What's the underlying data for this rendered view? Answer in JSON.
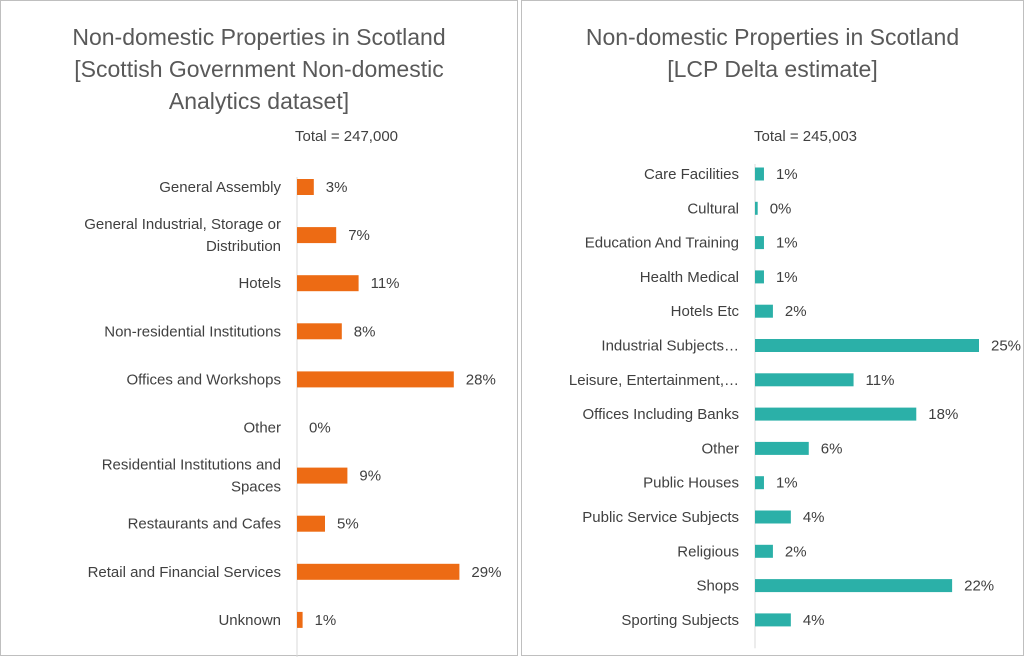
{
  "chart_data": [
    {
      "type": "bar",
      "orientation": "horizontal",
      "title": "Non-domestic Properties in Scotland [Scottish Government Non-domestic Analytics dataset]",
      "title_lines": [
        "Non-domestic Properties in Scotland",
        "[Scottish Government Non-domestic",
        "Analytics dataset]"
      ],
      "subtitle": "Total = 247,000",
      "color": "#ED6B14",
      "categories": [
        "General Assembly",
        "General Industrial, Storage or Distribution",
        "Hotels",
        "Non-residential Institutions",
        "Offices and Workshops",
        "Other",
        "Residential Institutions and Spaces",
        "Restaurants and Cafes",
        "Retail and Financial Services",
        "Unknown"
      ],
      "category_lines": [
        [
          "General Assembly"
        ],
        [
          "General Industrial, Storage or",
          "Distribution"
        ],
        [
          "Hotels"
        ],
        [
          "Non-residential Institutions"
        ],
        [
          "Offices and Workshops"
        ],
        [
          "Other"
        ],
        [
          "Residential Institutions and",
          "Spaces"
        ],
        [
          "Restaurants and Cafes"
        ],
        [
          "Retail and Financial Services"
        ],
        [
          "Unknown"
        ]
      ],
      "values": [
        3,
        7,
        11,
        8,
        28,
        0,
        9,
        5,
        29,
        1
      ],
      "labels": [
        "3%",
        "7%",
        "11%",
        "8%",
        "28%",
        "0%",
        "9%",
        "5%",
        "29%",
        "1%"
      ],
      "xlim": [
        0,
        30
      ],
      "grid": false,
      "legend": "none"
    },
    {
      "type": "bar",
      "orientation": "horizontal",
      "title": "Non-domestic Properties in Scotland [LCP Delta estimate]",
      "title_lines": [
        "Non-domestic Properties in Scotland",
        "[LCP Delta estimate]"
      ],
      "subtitle": "Total = 245,003",
      "color": "#2BB0A8",
      "categories": [
        "Care Facilities",
        "Cultural",
        "Education And Training",
        "Health Medical",
        "Hotels Etc",
        "Industrial Subjects…",
        "Leisure, Entertainment,…",
        "Offices Including Banks",
        "Other",
        "Public Houses",
        "Public Service Subjects",
        "Religious",
        "Shops",
        "Sporting Subjects"
      ],
      "values": [
        1,
        0.3,
        1,
        1,
        2,
        25,
        11,
        18,
        6,
        1,
        4,
        2,
        22,
        4
      ],
      "labels": [
        "1%",
        "0%",
        "1%",
        "1%",
        "2%",
        "25%",
        "11%",
        "18%",
        "6%",
        "1%",
        "4%",
        "2%",
        "22%",
        "4%"
      ],
      "xlim": [
        0,
        25
      ],
      "grid": false,
      "legend": "none"
    }
  ]
}
